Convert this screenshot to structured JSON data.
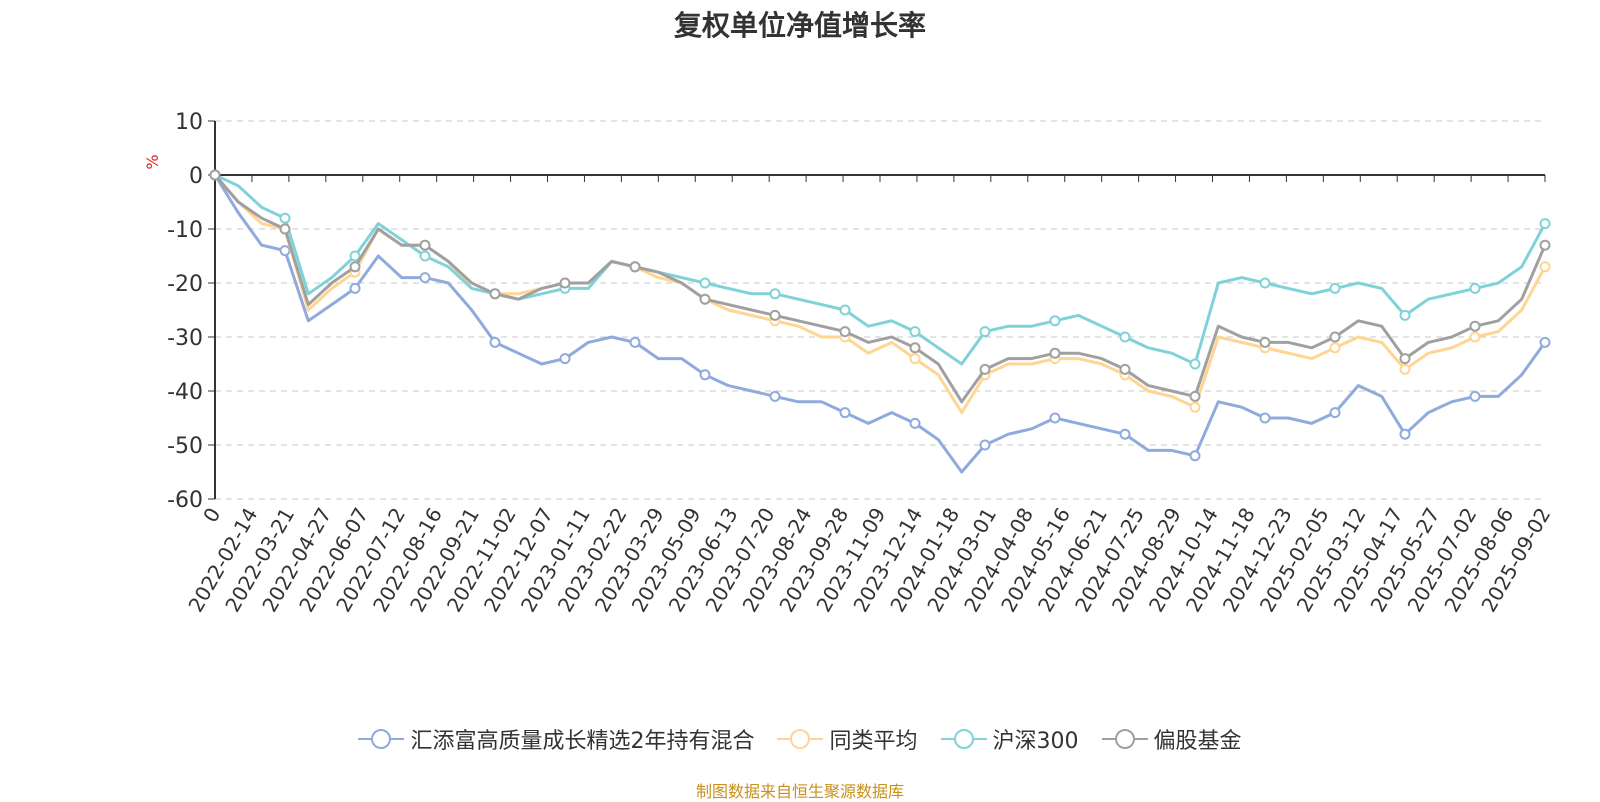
{
  "chart_data": {
    "type": "line",
    "title": "复权单位净值增长率",
    "ylabel": "%",
    "ylim": [
      -60,
      10
    ],
    "yticks": [
      10,
      0,
      -10,
      -20,
      -30,
      -40,
      -50,
      -60
    ],
    "x_ticks": [
      "0",
      "2022-02-14",
      "2022-03-21",
      "2022-04-27",
      "2022-06-07",
      "2022-07-12",
      "2022-08-16",
      "2022-09-21",
      "2022-11-02",
      "2022-12-07",
      "2023-01-11",
      "2023-02-22",
      "2023-03-29",
      "2023-05-09",
      "2023-06-13",
      "2023-07-20",
      "2023-08-24",
      "2023-09-28",
      "2023-11-09",
      "2023-12-14",
      "2024-01-18",
      "2024-03-01",
      "2024-04-08",
      "2024-05-16",
      "2024-06-21",
      "2024-07-25",
      "2024-08-29",
      "2024-10-14",
      "2024-11-18",
      "2024-12-23",
      "2025-02-05",
      "2025-03-12",
      "2025-04-17",
      "2025-05-27",
      "2025-07-02",
      "2025-08-06",
      "2025-09-02"
    ],
    "grid": "horizontal dashed",
    "legend_position": "bottom",
    "series": [
      {
        "name": "汇添富高质量成长精选2年持有混合",
        "color": "#8faadc",
        "values": [
          0,
          -7,
          -13,
          -14,
          -27,
          -24,
          -21,
          -15,
          -19,
          -19,
          -20,
          -25,
          -31,
          -33,
          -35,
          -34,
          -31,
          -30,
          -31,
          -34,
          -34,
          -37,
          -39,
          -40,
          -41,
          -42,
          -42,
          -44,
          -46,
          -44,
          -46,
          -49,
          -55,
          -50,
          -48,
          -47,
          -45,
          -46,
          -47,
          -48,
          -51,
          -51,
          -52,
          -42,
          -43,
          -45,
          -45,
          -46,
          -44,
          -39,
          -41,
          -48,
          -44,
          -42,
          -41,
          -41,
          -37,
          -31
        ]
      },
      {
        "name": "同类平均",
        "color": "#ffd591",
        "values": [
          0,
          -5,
          -9,
          -10,
          -25,
          -21,
          -18,
          -10,
          -13,
          -13,
          -16,
          -21,
          -22,
          -22,
          -21,
          -20,
          -20,
          -16,
          -17,
          -19,
          -20,
          -23,
          -25,
          -26,
          -27,
          -28,
          -30,
          -30,
          -33,
          -31,
          -34,
          -37,
          -44,
          -37,
          -35,
          -35,
          -34,
          -34,
          -35,
          -37,
          -40,
          -41,
          -43,
          -30,
          -31,
          -32,
          -33,
          -34,
          -32,
          -30,
          -31,
          -36,
          -33,
          -32,
          -30,
          -29,
          -25,
          -17
        ]
      },
      {
        "name": "沪深300",
        "color": "#7fd3d8",
        "values": [
          0,
          -2,
          -6,
          -8,
          -22,
          -19,
          -15,
          -9,
          -12,
          -15,
          -17,
          -21,
          -22,
          -23,
          -22,
          -21,
          -21,
          -16,
          -17,
          -18,
          -19,
          -20,
          -21,
          -22,
          -22,
          -23,
          -24,
          -25,
          -28,
          -27,
          -29,
          -32,
          -35,
          -29,
          -28,
          -28,
          -27,
          -26,
          -28,
          -30,
          -32,
          -33,
          -35,
          -20,
          -19,
          -20,
          -21,
          -22,
          -21,
          -20,
          -21,
          -26,
          -23,
          -22,
          -21,
          -20,
          -17,
          -9
        ]
      },
      {
        "name": "偏股基金",
        "color": "#a0a0a0",
        "values": [
          0,
          -5,
          -8,
          -10,
          -24,
          -20,
          -17,
          -10,
          -13,
          -13,
          -16,
          -20,
          -22,
          -23,
          -21,
          -20,
          -20,
          -16,
          -17,
          -18,
          -20,
          -23,
          -24,
          -25,
          -26,
          -27,
          -28,
          -29,
          -31,
          -30,
          -32,
          -35,
          -42,
          -36,
          -34,
          -34,
          -33,
          -33,
          -34,
          -36,
          -39,
          -40,
          -41,
          -28,
          -30,
          -31,
          -31,
          -32,
          -30,
          -27,
          -28,
          -34,
          -31,
          -30,
          -28,
          -27,
          -23,
          -13
        ]
      }
    ]
  },
  "source": "制图数据来自恒生聚源数据库"
}
